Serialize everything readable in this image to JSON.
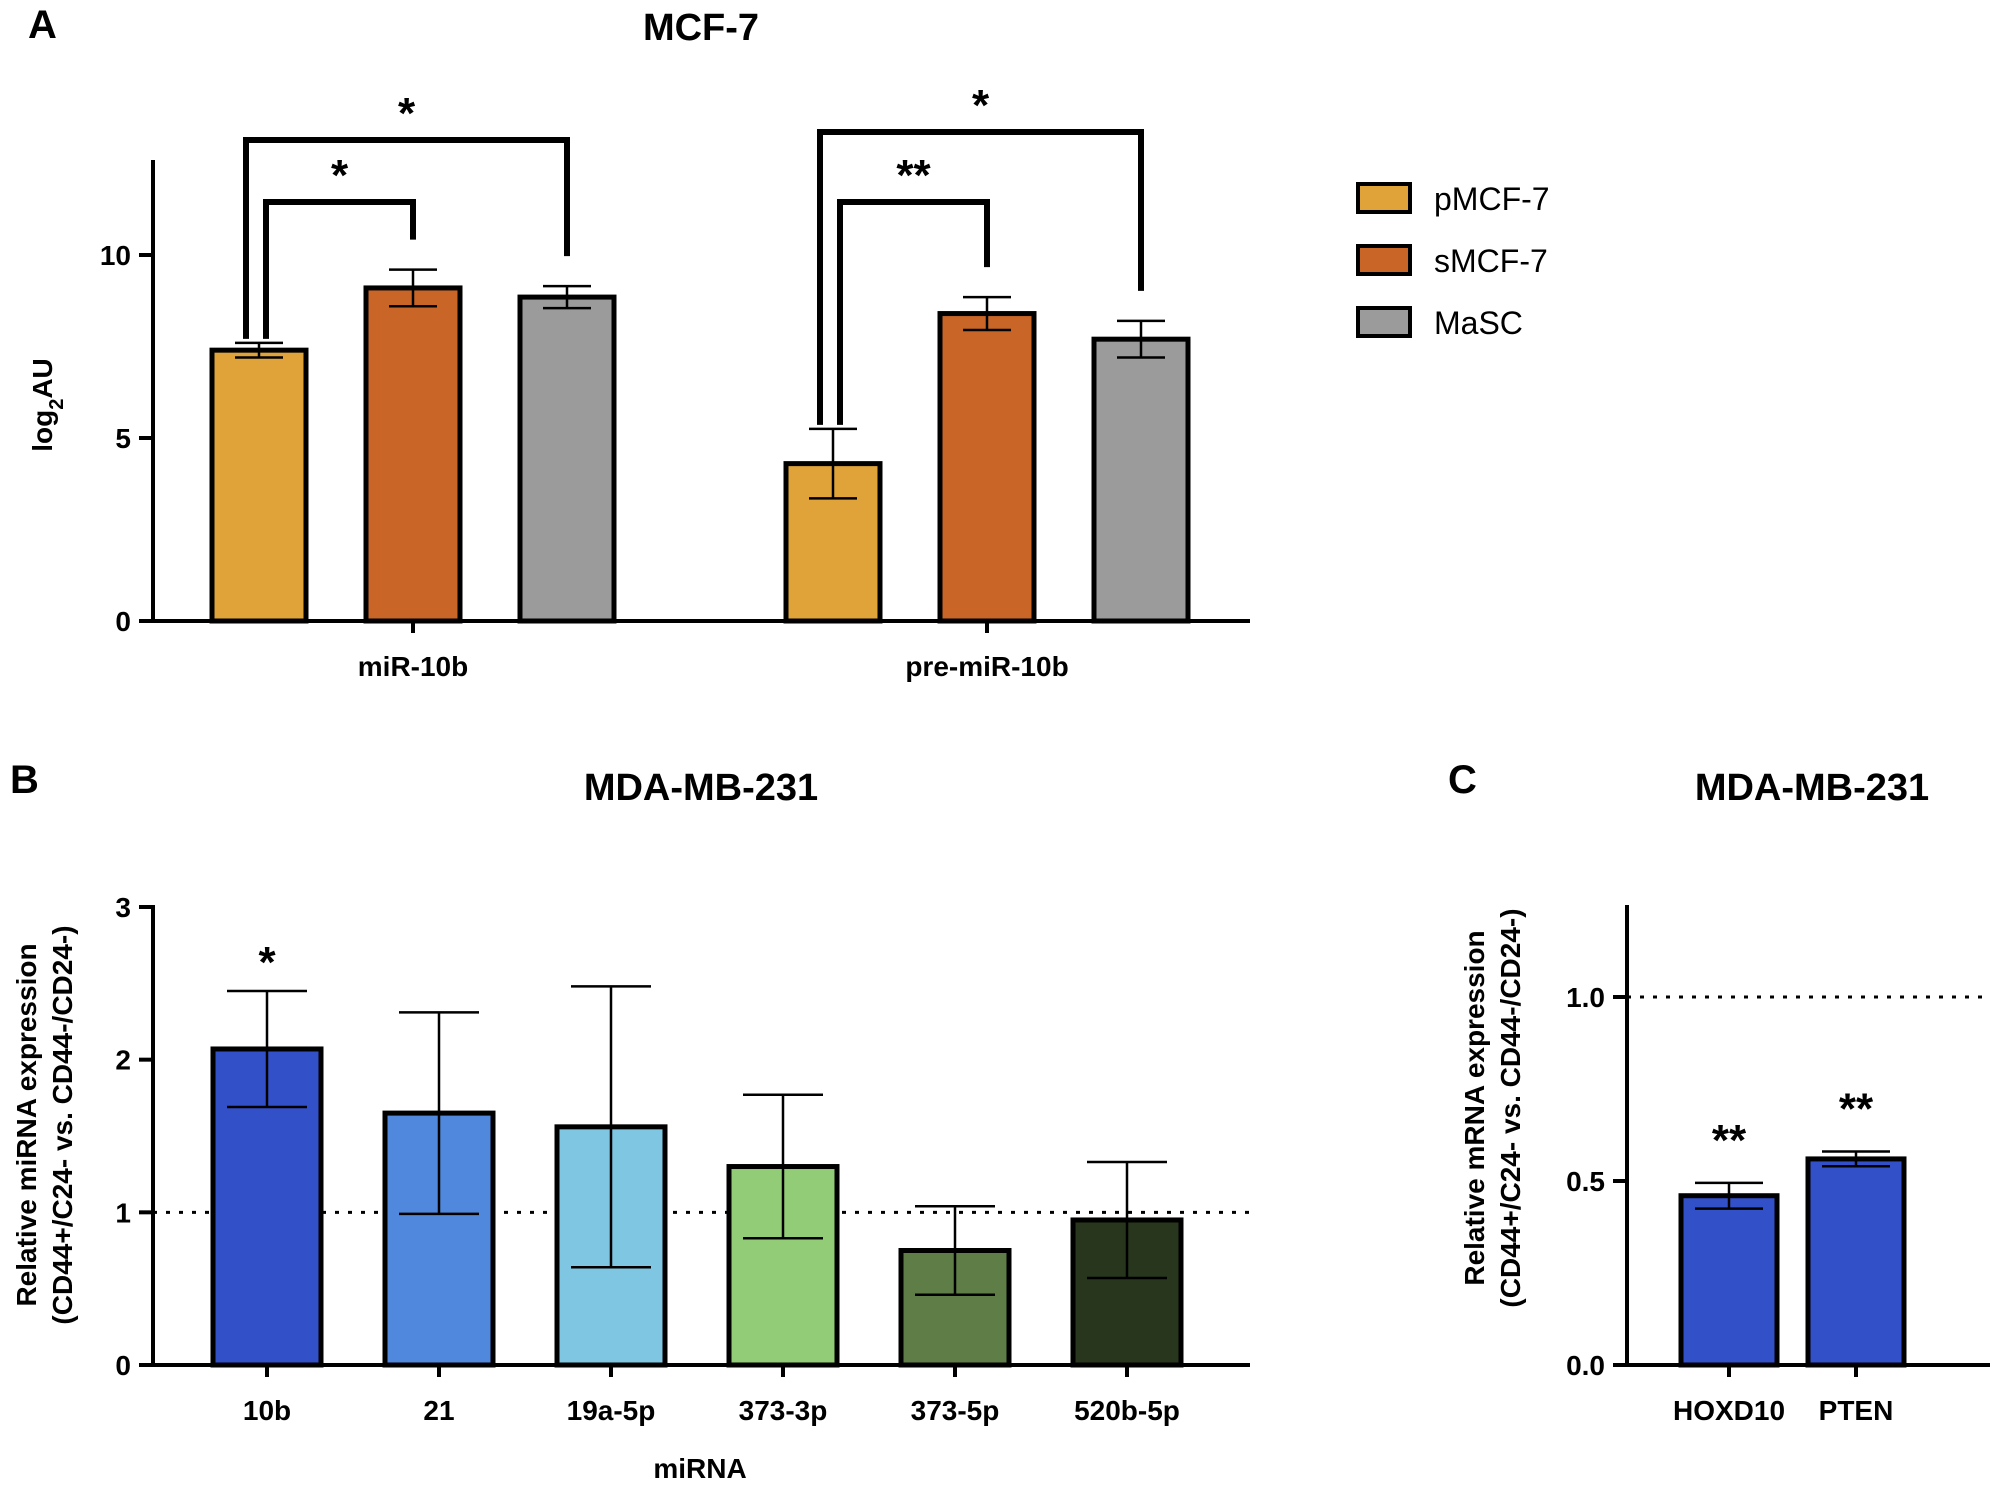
{
  "panels": {
    "A": {
      "letter": "A",
      "chart_data": {
        "type": "bar",
        "title": "MCF-7",
        "ylabel_main": "log",
        "ylabel_sub": "2",
        "ylabel_tail": "AU",
        "xlabel": "",
        "ylim": [
          0,
          12.5
        ],
        "yticks": [
          "0",
          "5",
          "10"
        ],
        "categories": [
          "miR-10b",
          "pre-miR-10b"
        ],
        "series": [
          {
            "name": "pMCF-7",
            "color": "#DFA33A",
            "values": [
              7.4,
              4.3
            ],
            "errors": [
              0.2,
              0.95
            ]
          },
          {
            "name": "sMCF-7",
            "color": "#C96527",
            "values": [
              9.1,
              8.4
            ],
            "errors": [
              0.5,
              0.45
            ]
          },
          {
            "name": "MaSC",
            "color": "#9B9B9B",
            "values": [
              8.85,
              7.7
            ],
            "errors": [
              0.3,
              0.5
            ]
          }
        ],
        "legend": "right",
        "significance": [
          {
            "category": "miR-10b",
            "from": "pMCF-7",
            "to": "sMCF-7",
            "label": "*"
          },
          {
            "category": "miR-10b",
            "from": "pMCF-7",
            "to": "MaSC",
            "label": "*"
          },
          {
            "category": "pre-miR-10b",
            "from": "pMCF-7",
            "to": "sMCF-7",
            "label": "**"
          },
          {
            "category": "pre-miR-10b",
            "from": "pMCF-7",
            "to": "MaSC",
            "label": "*"
          }
        ]
      }
    },
    "B": {
      "letter": "B",
      "chart_data": {
        "type": "bar",
        "title": "MDA-MB-231",
        "xlabel": "miRNA",
        "ylabel_line1": "Relative miRNA expression",
        "ylabel_line2": "(CD44+/C24- vs. CD44-/CD24-)",
        "ylim": [
          0,
          3
        ],
        "yticks": [
          "0",
          "1",
          "2",
          "3"
        ],
        "reference_line": 1,
        "categories": [
          "10b",
          "21",
          "19a-5p",
          "373-3p",
          "373-5p",
          "520b-5p"
        ],
        "values": [
          2.07,
          1.65,
          1.56,
          1.3,
          0.75,
          0.95
        ],
        "errors": [
          0.38,
          0.66,
          0.92,
          0.47,
          0.29,
          0.38
        ],
        "colors": [
          "#3250C8",
          "#4F88DC",
          "#7EC6E2",
          "#92CC76",
          "#5F7D47",
          "#27361C"
        ],
        "annotations": [
          "*",
          "",
          "",
          "",
          "",
          ""
        ]
      }
    },
    "C": {
      "letter": "C",
      "chart_data": {
        "type": "bar",
        "title": "MDA-MB-231",
        "xlabel": "",
        "ylabel_line1": "Relative mRNA expression",
        "ylabel_line2": "(CD44+/C24- vs. CD44-/CD24-)",
        "ylim": [
          0,
          1.25
        ],
        "yticks": [
          "0.0",
          "0.5",
          "1.0"
        ],
        "reference_line": 1,
        "categories": [
          "HOXD10",
          "PTEN"
        ],
        "values": [
          0.46,
          0.56
        ],
        "errors": [
          0.035,
          0.02
        ],
        "colors": [
          "#3250C8",
          "#3250C8"
        ],
        "annotations": [
          "**",
          "**"
        ]
      }
    }
  }
}
